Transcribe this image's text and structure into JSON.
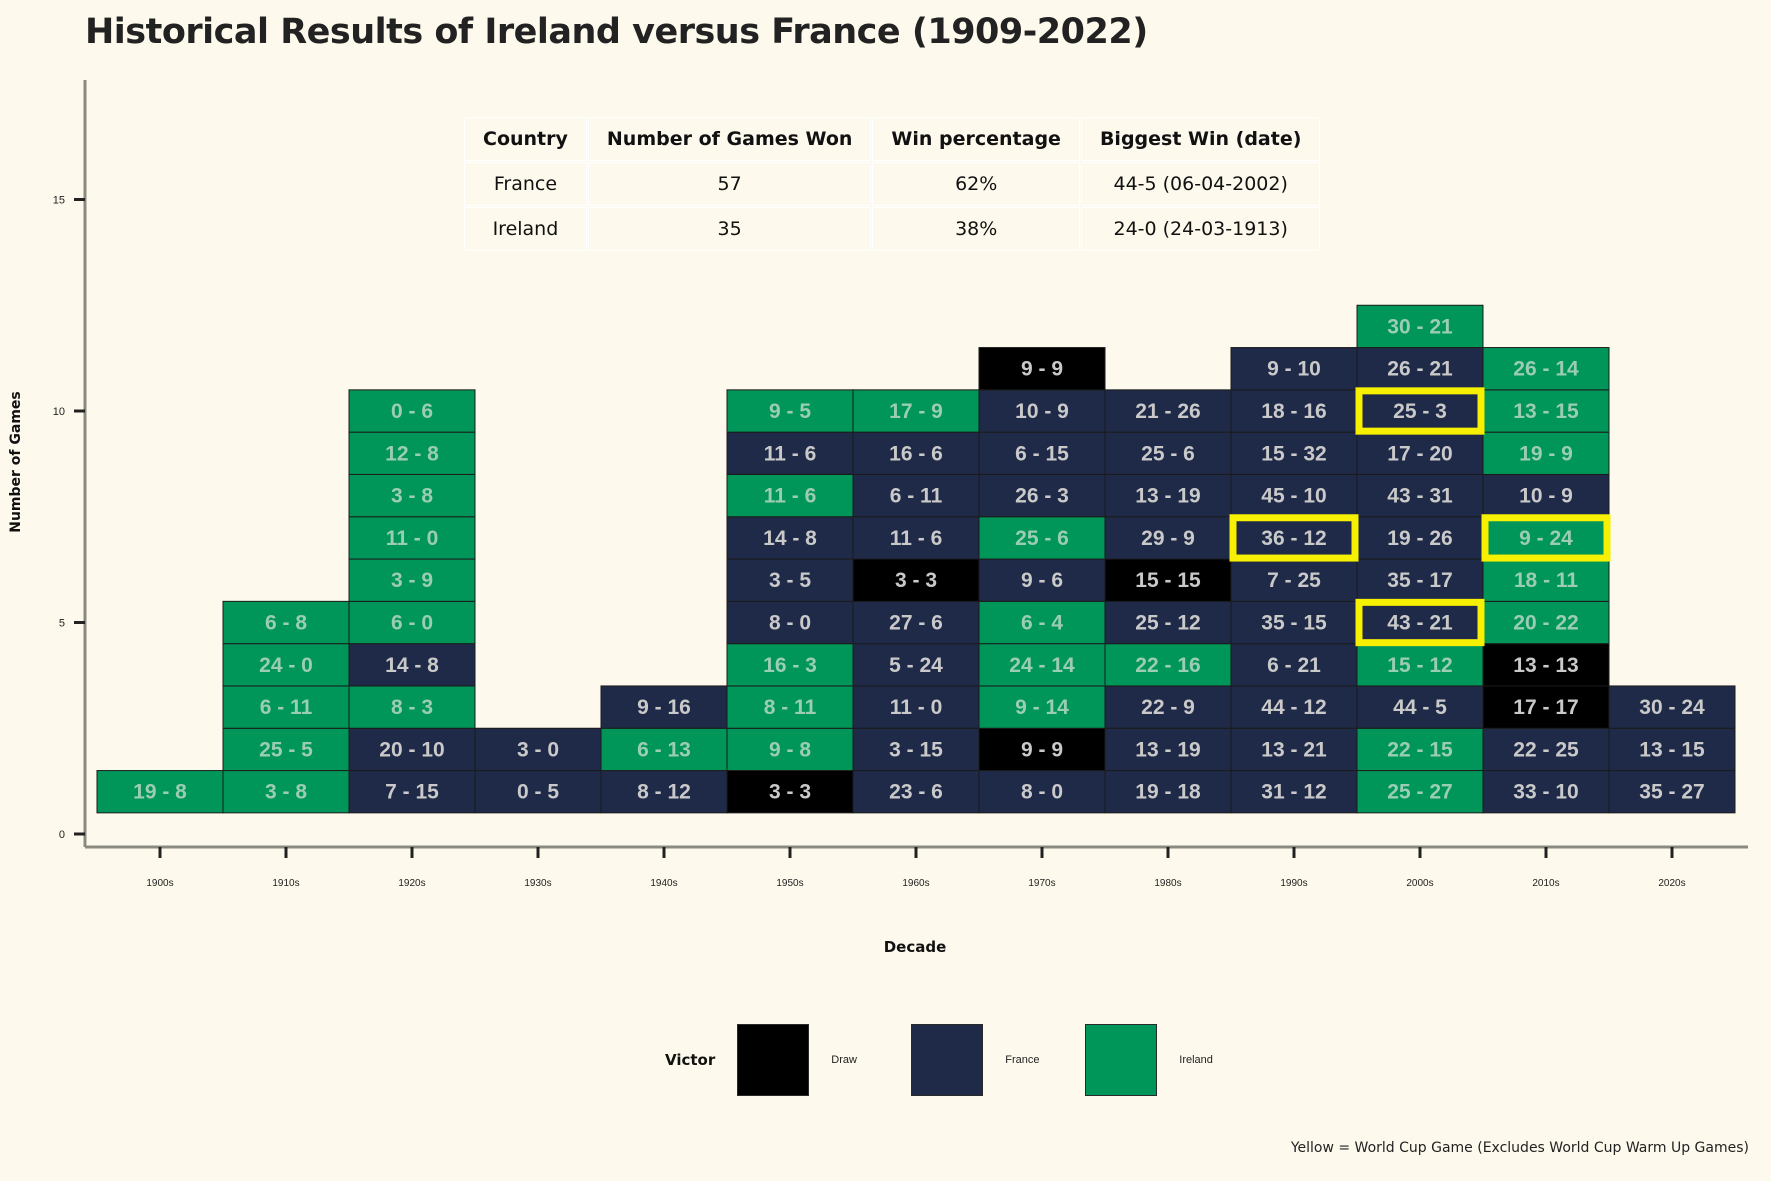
{
  "title": "Historical Results of Ireland versus France (1909-2022)",
  "summary_table": {
    "headers": [
      "Country",
      "Number of Games Won",
      "Win percentage",
      "Biggest Win (date)"
    ],
    "rows": [
      [
        "France",
        "57",
        "62%",
        "44-5 (06-04-2002)"
      ],
      [
        "Ireland",
        "35",
        "38%",
        "24-0 (24-03-1913)"
      ]
    ]
  },
  "legend": {
    "title": "Victor",
    "items": [
      {
        "label": "Draw",
        "color": "#000000"
      },
      {
        "label": "France",
        "color": "#1f2a48"
      },
      {
        "label": "Ireland",
        "color": "#009659"
      }
    ]
  },
  "caption": "Yellow = World Cup Game (Excludes World Cup Warm Up Games)",
  "colors": {
    "Draw": "#000000",
    "France": "#1f2a48",
    "Ireland": "#009659",
    "highlight": "#f7f000",
    "background": "#fdf9ec"
  },
  "chart_data": {
    "type": "bar",
    "subtype": "stacked-tiles",
    "xlabel": "Decade",
    "ylabel": "Number of Games",
    "ylim": [
      0,
      18
    ],
    "yticks": [
      0,
      5,
      10,
      15
    ],
    "categories": [
      "1900s",
      "1910s",
      "1920s",
      "1930s",
      "1940s",
      "1950s",
      "1960s",
      "1970s",
      "1980s",
      "1990s",
      "2000s",
      "2010s",
      "2020s"
    ],
    "games_per_decade": [
      1,
      5,
      10,
      2,
      3,
      10,
      10,
      11,
      10,
      11,
      12,
      11,
      3
    ],
    "tiles": [
      [
        {
          "score": "19 - 8",
          "victor": "Ireland"
        }
      ],
      [
        {
          "score": "3 - 8",
          "victor": "Ireland"
        },
        {
          "score": "25 - 5",
          "victor": "Ireland"
        },
        {
          "score": "6 - 11",
          "victor": "Ireland"
        },
        {
          "score": "24 - 0",
          "victor": "Ireland"
        },
        {
          "score": "6 - 8",
          "victor": "Ireland"
        }
      ],
      [
        {
          "score": "7 - 15",
          "victor": "France"
        },
        {
          "score": "20 - 10",
          "victor": "France"
        },
        {
          "score": "8 - 3",
          "victor": "Ireland"
        },
        {
          "score": "14 - 8",
          "victor": "France"
        },
        {
          "score": "6 - 0",
          "victor": "Ireland"
        },
        {
          "score": "3 - 9",
          "victor": "Ireland"
        },
        {
          "score": "11 - 0",
          "victor": "Ireland"
        },
        {
          "score": "3 - 8",
          "victor": "Ireland"
        },
        {
          "score": "12 - 8",
          "victor": "Ireland"
        },
        {
          "score": "0 - 6",
          "victor": "Ireland"
        }
      ],
      [
        {
          "score": "0 - 5",
          "victor": "France"
        },
        {
          "score": "3 - 0",
          "victor": "France"
        }
      ],
      [
        {
          "score": "8 - 12",
          "victor": "France"
        },
        {
          "score": "6 - 13",
          "victor": "Ireland"
        },
        {
          "score": "9 - 16",
          "victor": "France"
        }
      ],
      [
        {
          "score": "3 - 3",
          "victor": "Draw"
        },
        {
          "score": "9 - 8",
          "victor": "Ireland"
        },
        {
          "score": "8 - 11",
          "victor": "Ireland"
        },
        {
          "score": "16 - 3",
          "victor": "Ireland"
        },
        {
          "score": "8 - 0",
          "victor": "France"
        },
        {
          "score": "3 - 5",
          "victor": "France"
        },
        {
          "score": "14 - 8",
          "victor": "France"
        },
        {
          "score": "11 - 6",
          "victor": "Ireland"
        },
        {
          "score": "11 - 6",
          "victor": "France"
        },
        {
          "score": "9 - 5",
          "victor": "Ireland"
        }
      ],
      [
        {
          "score": "23 - 6",
          "victor": "France"
        },
        {
          "score": "3 - 15",
          "victor": "France"
        },
        {
          "score": "11 - 0",
          "victor": "France"
        },
        {
          "score": "5 - 24",
          "victor": "France"
        },
        {
          "score": "27 - 6",
          "victor": "France"
        },
        {
          "score": "3 - 3",
          "victor": "Draw"
        },
        {
          "score": "11 - 6",
          "victor": "France"
        },
        {
          "score": "6 - 11",
          "victor": "France"
        },
        {
          "score": "16 - 6",
          "victor": "France"
        },
        {
          "score": "17 - 9",
          "victor": "Ireland"
        }
      ],
      [
        {
          "score": "8 - 0",
          "victor": "France"
        },
        {
          "score": "9 - 9",
          "victor": "Draw"
        },
        {
          "score": "9 - 14",
          "victor": "Ireland"
        },
        {
          "score": "24 - 14",
          "victor": "Ireland"
        },
        {
          "score": "6 - 4",
          "victor": "Ireland"
        },
        {
          "score": "9 - 6",
          "victor": "France"
        },
        {
          "score": "25 - 6",
          "victor": "Ireland"
        },
        {
          "score": "26 - 3",
          "victor": "France"
        },
        {
          "score": "6 - 15",
          "victor": "France"
        },
        {
          "score": "10 - 9",
          "victor": "France"
        },
        {
          "score": "9 - 9",
          "victor": "Draw"
        }
      ],
      [
        {
          "score": "19 - 18",
          "victor": "France"
        },
        {
          "score": "13 - 19",
          "victor": "France"
        },
        {
          "score": "22 - 9",
          "victor": "France"
        },
        {
          "score": "22 - 16",
          "victor": "Ireland"
        },
        {
          "score": "25 - 12",
          "victor": "France"
        },
        {
          "score": "15 - 15",
          "victor": "Draw"
        },
        {
          "score": "29 - 9",
          "victor": "France"
        },
        {
          "score": "13 - 19",
          "victor": "France"
        },
        {
          "score": "25 - 6",
          "victor": "France"
        },
        {
          "score": "21 - 26",
          "victor": "France"
        }
      ],
      [
        {
          "score": "31 - 12",
          "victor": "France"
        },
        {
          "score": "13 - 21",
          "victor": "France"
        },
        {
          "score": "44 - 12",
          "victor": "France"
        },
        {
          "score": "6 - 21",
          "victor": "France"
        },
        {
          "score": "35 - 15",
          "victor": "France"
        },
        {
          "score": "7 - 25",
          "victor": "France"
        },
        {
          "score": "36 - 12",
          "victor": "France",
          "world_cup": true
        },
        {
          "score": "45 - 10",
          "victor": "France"
        },
        {
          "score": "15 - 32",
          "victor": "France"
        },
        {
          "score": "18 - 16",
          "victor": "France"
        },
        {
          "score": "9 - 10",
          "victor": "France"
        }
      ],
      [
        {
          "score": "25 - 27",
          "victor": "Ireland"
        },
        {
          "score": "22 - 15",
          "victor": "Ireland"
        },
        {
          "score": "44 - 5",
          "victor": "France"
        },
        {
          "score": "15 - 12",
          "victor": "Ireland"
        },
        {
          "score": "43 - 21",
          "victor": "France",
          "world_cup": true
        },
        {
          "score": "35 - 17",
          "victor": "France"
        },
        {
          "score": "19 - 26",
          "victor": "France"
        },
        {
          "score": "43 - 31",
          "victor": "France"
        },
        {
          "score": "17 - 20",
          "victor": "France"
        },
        {
          "score": "25 - 3",
          "victor": "France",
          "world_cup": true
        },
        {
          "score": "26 - 21",
          "victor": "France"
        },
        {
          "score": "30 - 21",
          "victor": "Ireland"
        }
      ],
      [
        {
          "score": "33 - 10",
          "victor": "France"
        },
        {
          "score": "22 - 25",
          "victor": "France"
        },
        {
          "score": "17 - 17",
          "victor": "Draw"
        },
        {
          "score": "13 - 13",
          "victor": "Draw"
        },
        {
          "score": "20 - 22",
          "victor": "Ireland"
        },
        {
          "score": "18 - 11",
          "victor": "Ireland"
        },
        {
          "score": "9 - 24",
          "victor": "Ireland",
          "world_cup": true
        },
        {
          "score": "10 - 9",
          "victor": "France"
        },
        {
          "score": "19 - 9",
          "victor": "Ireland"
        },
        {
          "score": "13 - 15",
          "victor": "Ireland"
        },
        {
          "score": "26 - 14",
          "victor": "Ireland"
        }
      ],
      [
        {
          "score": "35 - 27",
          "victor": "France"
        },
        {
          "score": "13 - 15",
          "victor": "France"
        },
        {
          "score": "30 - 24",
          "victor": "France"
        }
      ]
    ]
  }
}
